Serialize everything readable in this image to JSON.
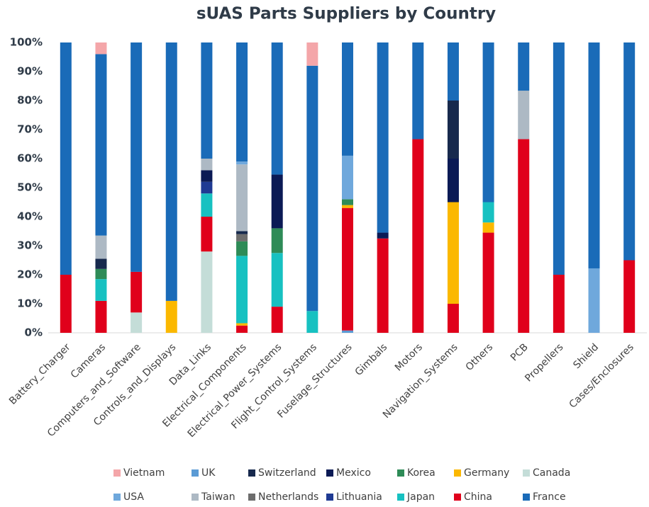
{
  "chart_data": {
    "type": "stacked_bar",
    "title": "sUAS Parts Suppliers by Country",
    "categories": [
      "Battery_Charger",
      "Cameras",
      "Computers_and_Software",
      "Controls_and_Displays",
      "Data_Links",
      "Electrical_Components",
      "Electrical_Power_Systems",
      "Flight_Control_Systems",
      "Fuselage_Structures",
      "Gimbals",
      "Motors",
      "Navigation_Systems",
      "Others",
      "PCB",
      "Propellers",
      "Shield",
      "Cases/Enclosures"
    ],
    "series": [
      {
        "name": "Vietnam",
        "color": "#f4a6a9",
        "values": [
          0,
          4,
          0,
          0,
          0,
          0,
          0,
          8,
          0,
          0,
          0,
          0,
          0,
          0,
          0,
          0,
          0
        ]
      },
      {
        "name": "UK",
        "color": "#5b9bd5",
        "values": [
          0,
          0,
          0,
          0,
          0,
          0,
          0,
          0,
          0.8,
          0,
          0,
          0,
          0,
          0,
          0,
          0,
          0
        ]
      },
      {
        "name": "Switzerland",
        "color": "#17294d",
        "values": [
          0,
          3.5,
          0,
          0,
          0,
          1,
          0,
          0,
          0,
          0,
          0,
          20,
          0,
          0,
          0,
          0,
          0
        ]
      },
      {
        "name": "Mexico",
        "color": "#0b1a55",
        "values": [
          0,
          0,
          0,
          0,
          4,
          0,
          18.5,
          0,
          0,
          2,
          0,
          15,
          0,
          0,
          0,
          0,
          0
        ]
      },
      {
        "name": "Korea",
        "color": "#2e8b57",
        "values": [
          0,
          3.5,
          0,
          0,
          0,
          5,
          8.5,
          0,
          2,
          0,
          0,
          0,
          0,
          0,
          0,
          0,
          0
        ]
      },
      {
        "name": "Germany",
        "color": "#fbb800",
        "values": [
          0,
          0,
          0,
          11,
          0,
          0.8,
          0,
          0,
          1,
          0,
          0,
          35,
          3.5,
          0,
          0,
          0,
          0
        ]
      },
      {
        "name": "Canada",
        "color": "#c4ddd8",
        "values": [
          0,
          0,
          7,
          0,
          28,
          0,
          0,
          0,
          0,
          0,
          0,
          0,
          0,
          0,
          0,
          0,
          0
        ]
      },
      {
        "name": "USA",
        "color": "#6fa8dc",
        "values": [
          0,
          0,
          0,
          0,
          0,
          1,
          0,
          0,
          15,
          0,
          0,
          0,
          0,
          0,
          0,
          22.2,
          0
        ]
      },
      {
        "name": "Taiwan",
        "color": "#adb9c4",
        "values": [
          0,
          8,
          0,
          0,
          4,
          23,
          0,
          0,
          0,
          0,
          0,
          0,
          0,
          16.7,
          0,
          0,
          0
        ]
      },
      {
        "name": "Netherlands",
        "color": "#6d6d6d",
        "values": [
          0,
          0,
          0,
          0,
          0,
          2.5,
          0,
          0,
          0,
          0,
          0,
          0,
          0,
          0,
          0,
          0,
          0
        ]
      },
      {
        "name": "Lithuania",
        "color": "#1f3a93",
        "values": [
          0,
          0,
          0,
          0,
          4,
          0,
          0,
          0,
          0,
          0,
          0,
          0,
          0,
          0,
          0,
          0,
          0
        ]
      },
      {
        "name": "Japan",
        "color": "#17c1c1",
        "values": [
          0,
          7.5,
          0,
          0,
          8,
          23.2,
          18.5,
          7.5,
          0,
          0,
          0,
          0,
          7,
          0,
          0,
          0,
          0
        ]
      },
      {
        "name": "China",
        "color": "#e0001b",
        "values": [
          20,
          11,
          14,
          0,
          12,
          2.5,
          9,
          0,
          42.2,
          32.5,
          66.7,
          10,
          34.5,
          66.7,
          20,
          0,
          25
        ]
      },
      {
        "name": "France",
        "color": "#1a6bb8",
        "values": [
          80,
          62.5,
          79,
          89,
          40,
          41,
          45.5,
          84.5,
          39,
          65.5,
          33.3,
          20,
          55,
          16.6,
          80,
          77.8,
          75
        ]
      }
    ],
    "ylim": [
      0,
      100
    ],
    "yticks": [
      {
        "value": 0,
        "label": "0%"
      },
      {
        "value": 10,
        "label": "10%"
      },
      {
        "value": 20,
        "label": "20%"
      },
      {
        "value": 30,
        "label": "30%"
      },
      {
        "value": 40,
        "label": "40%"
      },
      {
        "value": 50,
        "label": "50%"
      },
      {
        "value": 60,
        "label": "60%"
      },
      {
        "value": 70,
        "label": "70%"
      },
      {
        "value": 80,
        "label": "80%"
      },
      {
        "value": 90,
        "label": "90%"
      },
      {
        "value": 100,
        "label": "100%"
      }
    ],
    "legend": "bottom"
  }
}
